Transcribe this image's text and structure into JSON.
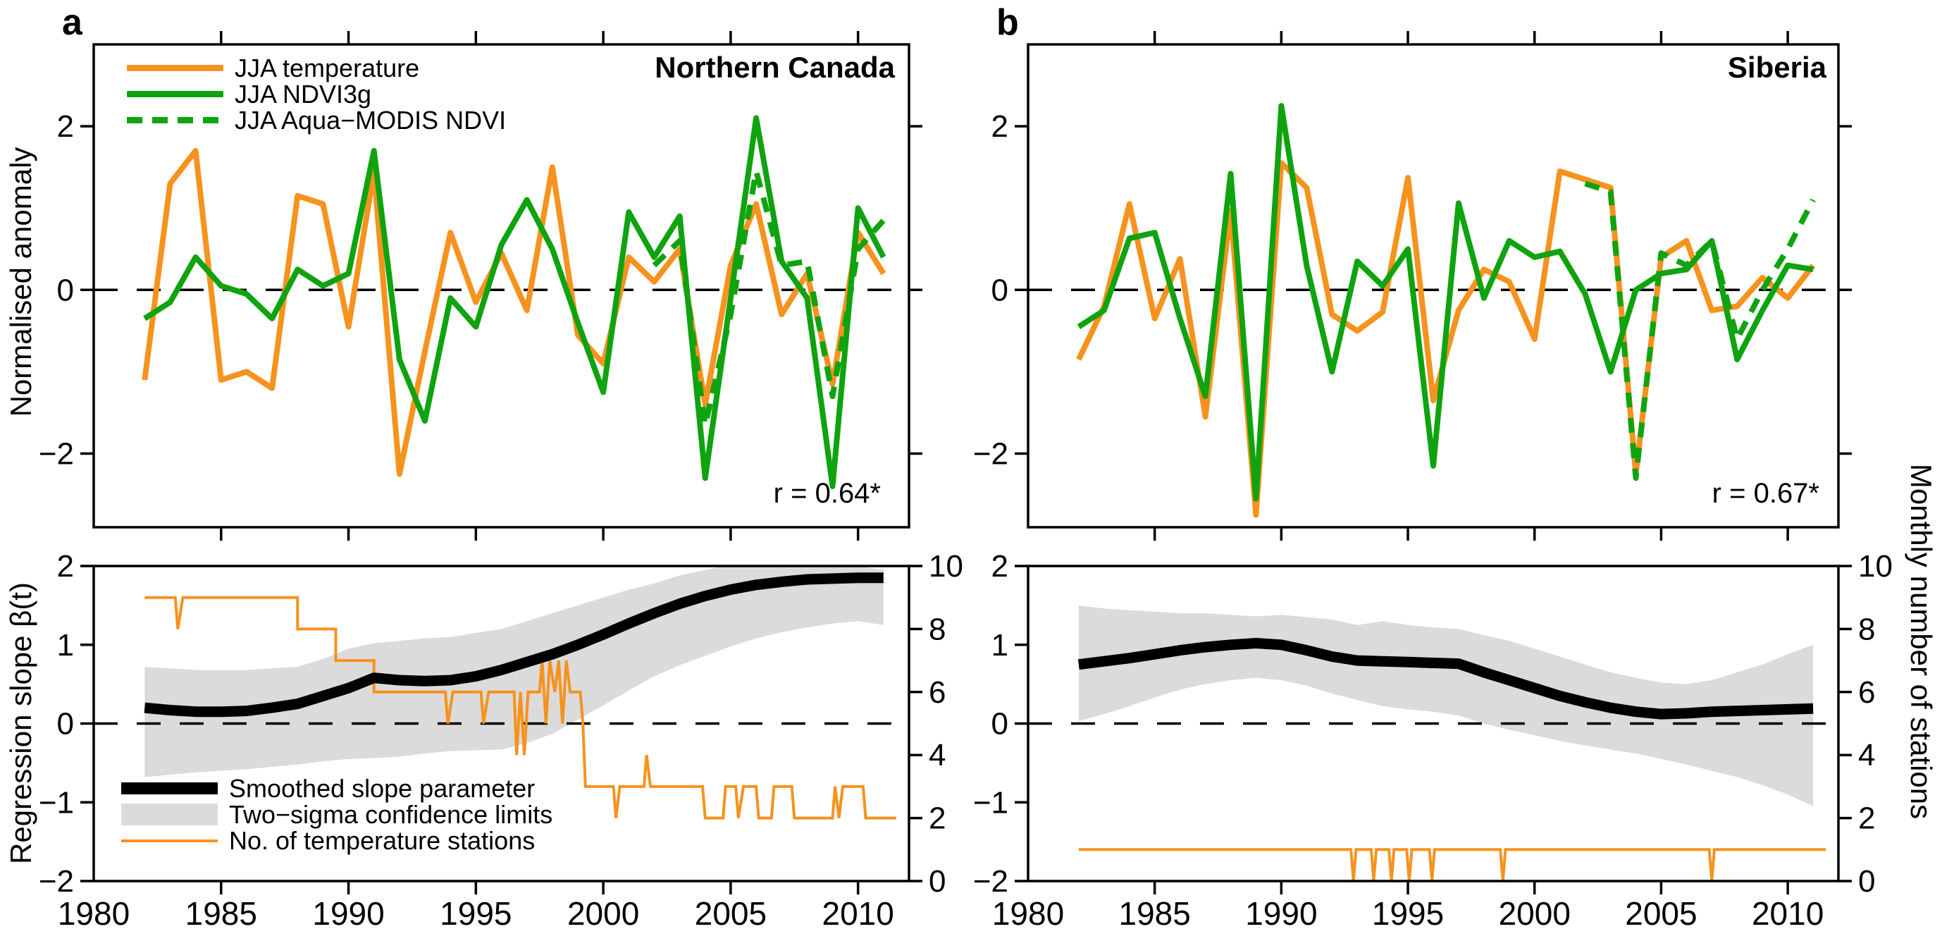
{
  "figure": {
    "panel_a_label": "a",
    "panel_b_label": "b",
    "titles": {
      "a": "Northern Canada",
      "b": "Siberia"
    },
    "r_values": {
      "a": "r = 0.64*",
      "b": "r = 0.67*"
    },
    "axis_labels": {
      "top_y": "Normalised anomaly",
      "bottom_y": "Regression slope β(t)",
      "right_y": "Monthly number of stations"
    },
    "legend_top": [
      {
        "label": "JJA temperature",
        "color_key": "temperature",
        "style": "solid"
      },
      {
        "label": "JJA NDVI3g",
        "color_key": "ndvi",
        "style": "solid"
      },
      {
        "label": "JJA Aqua−MODIS NDVI",
        "color_key": "ndvi",
        "style": "dashed"
      }
    ],
    "legend_bottom": [
      {
        "label": "Smoothed slope parameter",
        "style": "thick-black"
      },
      {
        "label": "Two−sigma confidence limits",
        "style": "band"
      },
      {
        "label": "No. of temperature stations",
        "style": "thin-orange"
      }
    ],
    "colors": {
      "temperature": "#F6921E",
      "ndvi": "#0FA30F",
      "smoothed": "#000000",
      "band": "#DBDBDB",
      "axis": "#000000"
    }
  },
  "chart_data": [
    {
      "id": "a_top",
      "type": "line",
      "title": "Northern Canada",
      "annotation": "r = 0.64*",
      "xlim": [
        1980,
        2012
      ],
      "ylim": [
        -2.9,
        3.0
      ],
      "y_ticks": [
        2,
        0,
        -2
      ],
      "x_ticks": [
        1985,
        1990,
        1995,
        2000,
        2005,
        2010
      ],
      "zero_line": true,
      "years": [
        1982,
        1983,
        1984,
        1985,
        1986,
        1987,
        1988,
        1989,
        1990,
        1991,
        1992,
        1993,
        1994,
        1995,
        1996,
        1997,
        1998,
        1999,
        2000,
        2001,
        2002,
        2003,
        2004,
        2005,
        2006,
        2007,
        2008,
        2009,
        2010,
        2011
      ],
      "series": [
        {
          "name": "JJA temperature",
          "color_key": "temperature",
          "dashed": false,
          "values": [
            -1.1,
            1.3,
            1.7,
            -1.1,
            -1.0,
            -1.2,
            1.15,
            1.05,
            -0.45,
            1.45,
            -2.25,
            -0.75,
            0.7,
            -0.15,
            0.45,
            -0.25,
            1.5,
            -0.55,
            -0.9,
            0.4,
            0.1,
            0.5,
            -1.4,
            0.3,
            1.05,
            -0.3,
            0.2,
            -1.15,
            0.7,
            0.2
          ]
        },
        {
          "name": "JJA NDVI3g",
          "color_key": "ndvi",
          "dashed": false,
          "values": [
            -0.35,
            -0.15,
            0.4,
            0.05,
            -0.05,
            -0.35,
            0.25,
            0.05,
            0.2,
            1.7,
            -0.85,
            -1.6,
            -0.1,
            -0.45,
            0.55,
            1.1,
            0.5,
            -0.4,
            -1.25,
            0.95,
            0.4,
            0.9,
            -2.3,
            -0.1,
            2.1,
            0.35,
            -0.1,
            -2.4,
            1.0,
            0.4
          ]
        },
        {
          "name": "JJA Aqua−MODIS NDVI",
          "color_key": "ndvi",
          "dashed": true,
          "years": [
            2002,
            2003,
            2004,
            2005,
            2006,
            2007,
            2008,
            2009,
            2010,
            2011
          ],
          "values": [
            0.3,
            0.6,
            -1.65,
            -0.3,
            1.45,
            0.3,
            0.35,
            -1.3,
            0.5,
            0.85
          ]
        }
      ]
    },
    {
      "id": "b_top",
      "type": "line",
      "title": "Siberia",
      "annotation": "r = 0.67*",
      "xlim": [
        1980,
        2012
      ],
      "ylim": [
        -2.9,
        3.0
      ],
      "y_ticks": [
        2,
        0,
        -2
      ],
      "x_ticks": [
        1985,
        1990,
        1995,
        2000,
        2005,
        2010
      ],
      "zero_line": true,
      "years": [
        1982,
        1983,
        1984,
        1985,
        1986,
        1987,
        1988,
        1989,
        1990,
        1991,
        1992,
        1993,
        1994,
        1995,
        1996,
        1997,
        1998,
        1999,
        2000,
        2001,
        2002,
        2003,
        2004,
        2005,
        2006,
        2007,
        2008,
        2009,
        2010,
        2011
      ],
      "series": [
        {
          "name": "JJA temperature",
          "color_key": "temperature",
          "dashed": false,
          "values": [
            -0.85,
            -0.2,
            1.05,
            -0.35,
            0.38,
            -1.55,
            0.97,
            -2.75,
            1.55,
            1.25,
            -0.3,
            -0.5,
            -0.27,
            1.37,
            -1.35,
            -0.25,
            0.25,
            0.1,
            -0.6,
            1.45,
            1.35,
            1.25,
            -2.25,
            0.4,
            0.6,
            -0.25,
            -0.2,
            0.15,
            -0.1,
            0.3
          ]
        },
        {
          "name": "JJA NDVI3g",
          "color_key": "ndvi",
          "dashed": false,
          "values": [
            -0.45,
            -0.25,
            0.63,
            0.7,
            -0.35,
            -1.3,
            1.42,
            -2.55,
            2.25,
            0.3,
            -1.0,
            0.35,
            0.05,
            0.5,
            -2.15,
            1.06,
            -0.1,
            0.6,
            0.4,
            0.47,
            -0.05,
            -1.0,
            0.0,
            0.2,
            0.25,
            0.6,
            -0.85,
            -0.25,
            0.3,
            0.25
          ]
        },
        {
          "name": "JJA Aqua−MODIS NDVI",
          "color_key": "ndvi",
          "dashed": true,
          "years": [
            2002,
            2003,
            2004,
            2005,
            2006,
            2007,
            2008,
            2009,
            2010,
            2011
          ],
          "values": [
            1.3,
            1.2,
            -2.3,
            0.45,
            0.3,
            0.6,
            -0.6,
            0.0,
            0.5,
            1.1
          ]
        }
      ]
    },
    {
      "id": "a_bottom",
      "type": "line",
      "xlim": [
        1980,
        2012
      ],
      "ylim": [
        -2,
        2
      ],
      "y_ticks": [
        2,
        1,
        0,
        -1,
        -2
      ],
      "right_ylim": [
        0,
        10
      ],
      "right_ticks": [
        10,
        8,
        6,
        4,
        2,
        0
      ],
      "x_ticks": [
        1985,
        1990,
        1995,
        2000,
        2005,
        2010
      ],
      "x_tick_labels": [
        1980,
        1985,
        1990,
        1995,
        2000,
        2005,
        2010
      ],
      "zero_line": true,
      "years": [
        1982,
        1983,
        1984,
        1985,
        1986,
        1987,
        1988,
        1989,
        1990,
        1991,
        1992,
        1993,
        1994,
        1995,
        1996,
        1997,
        1998,
        1999,
        2000,
        2001,
        2002,
        2003,
        2004,
        2005,
        2006,
        2007,
        2008,
        2009,
        2010,
        2011
      ],
      "smoothed": [
        0.2,
        0.17,
        0.15,
        0.15,
        0.16,
        0.2,
        0.25,
        0.35,
        0.45,
        0.58,
        0.55,
        0.54,
        0.55,
        0.6,
        0.68,
        0.78,
        0.88,
        1.0,
        1.13,
        1.27,
        1.4,
        1.52,
        1.62,
        1.7,
        1.76,
        1.8,
        1.83,
        1.84,
        1.85,
        1.85
      ],
      "band_upper": [
        0.72,
        0.7,
        0.68,
        0.68,
        0.68,
        0.7,
        0.72,
        0.82,
        0.95,
        1.02,
        1.05,
        1.08,
        1.1,
        1.15,
        1.2,
        1.3,
        1.4,
        1.5,
        1.6,
        1.7,
        1.78,
        1.88,
        1.95,
        2.02,
        2.05,
        2.08,
        2.1,
        2.05,
        2.0,
        1.95
      ],
      "band_lower": [
        -0.68,
        -0.65,
        -0.62,
        -0.6,
        -0.58,
        -0.55,
        -0.52,
        -0.48,
        -0.45,
        -0.44,
        -0.42,
        -0.38,
        -0.35,
        -0.34,
        -0.33,
        -0.25,
        -0.13,
        0.05,
        0.23,
        0.42,
        0.6,
        0.74,
        0.86,
        0.98,
        1.08,
        1.16,
        1.22,
        1.27,
        1.3,
        1.25
      ],
      "stations": [
        [
          1982,
          9
        ],
        [
          1983.2,
          9
        ],
        [
          1983.3,
          8
        ],
        [
          1983.5,
          9
        ],
        [
          1988,
          9
        ],
        [
          1988,
          8
        ],
        [
          1989.5,
          8
        ],
        [
          1989.5,
          7
        ],
        [
          1991,
          7
        ],
        [
          1991,
          6
        ],
        [
          1993.8,
          6
        ],
        [
          1993.9,
          5
        ],
        [
          1994.1,
          6
        ],
        [
          1995.2,
          6
        ],
        [
          1995.3,
          5
        ],
        [
          1995.5,
          6
        ],
        [
          1996.5,
          6
        ],
        [
          1996.6,
          4
        ],
        [
          1996.75,
          6
        ],
        [
          1996.9,
          4
        ],
        [
          1997.05,
          6
        ],
        [
          1997.5,
          6
        ],
        [
          1997.6,
          7
        ],
        [
          1997.75,
          5
        ],
        [
          1997.9,
          7
        ],
        [
          1998.1,
          6
        ],
        [
          1998.25,
          7
        ],
        [
          1998.4,
          5
        ],
        [
          1998.55,
          7
        ],
        [
          1998.7,
          6
        ],
        [
          1999.1,
          6
        ],
        [
          1999.2,
          5
        ],
        [
          1999.3,
          3
        ],
        [
          2000.4,
          3
        ],
        [
          2000.5,
          2
        ],
        [
          2000.65,
          3
        ],
        [
          2001.6,
          3
        ],
        [
          2001.7,
          4
        ],
        [
          2001.85,
          3
        ],
        [
          2003.9,
          3
        ],
        [
          2004.0,
          2
        ],
        [
          2004.7,
          2
        ],
        [
          2004.8,
          3
        ],
        [
          2005.2,
          3
        ],
        [
          2005.3,
          2
        ],
        [
          2005.5,
          3
        ],
        [
          2006.0,
          3
        ],
        [
          2006.1,
          2
        ],
        [
          2006.6,
          2
        ],
        [
          2006.7,
          3
        ],
        [
          2007.4,
          3
        ],
        [
          2007.5,
          2
        ],
        [
          2009.0,
          2
        ],
        [
          2009.1,
          3
        ],
        [
          2009.25,
          2
        ],
        [
          2009.4,
          3
        ],
        [
          2010.2,
          3
        ],
        [
          2010.3,
          2
        ],
        [
          2011.5,
          2
        ]
      ]
    },
    {
      "id": "b_bottom",
      "type": "line",
      "xlim": [
        1980,
        2012
      ],
      "ylim": [
        -2,
        2
      ],
      "y_ticks": [
        2,
        1,
        0,
        -1,
        -2
      ],
      "right_ylim": [
        0,
        10
      ],
      "right_ticks": [
        10,
        8,
        6,
        4,
        2,
        0
      ],
      "x_ticks": [
        1985,
        1990,
        1995,
        2000,
        2005,
        2010
      ],
      "x_tick_labels": [
        1980,
        1985,
        1990,
        1995,
        2000,
        2005,
        2010
      ],
      "zero_line": true,
      "years": [
        1982,
        1983,
        1984,
        1985,
        1986,
        1987,
        1988,
        1989,
        1990,
        1991,
        1992,
        1993,
        1994,
        1995,
        1996,
        1997,
        1998,
        1999,
        2000,
        2001,
        2002,
        2003,
        2004,
        2005,
        2006,
        2007,
        2008,
        2009,
        2010,
        2011
      ],
      "smoothed": [
        0.75,
        0.79,
        0.83,
        0.88,
        0.93,
        0.97,
        1.0,
        1.02,
        1.0,
        0.93,
        0.85,
        0.8,
        0.79,
        0.78,
        0.77,
        0.76,
        0.65,
        0.55,
        0.45,
        0.35,
        0.27,
        0.2,
        0.15,
        0.12,
        0.13,
        0.15,
        0.16,
        0.17,
        0.18,
        0.19
      ],
      "band_upper": [
        1.5,
        1.46,
        1.44,
        1.42,
        1.4,
        1.4,
        1.38,
        1.36,
        1.38,
        1.35,
        1.32,
        1.25,
        1.3,
        1.25,
        1.22,
        1.2,
        1.12,
        1.05,
        0.95,
        0.85,
        0.75,
        0.65,
        0.58,
        0.52,
        0.5,
        0.55,
        0.65,
        0.75,
        0.88,
        1.0
      ],
      "band_lower": [
        0.03,
        0.12,
        0.22,
        0.33,
        0.43,
        0.5,
        0.55,
        0.58,
        0.55,
        0.48,
        0.38,
        0.3,
        0.22,
        0.18,
        0.15,
        0.1,
        0.0,
        -0.08,
        -0.15,
        -0.22,
        -0.28,
        -0.33,
        -0.38,
        -0.45,
        -0.52,
        -0.6,
        -0.68,
        -0.78,
        -0.9,
        -1.05
      ],
      "stations": [
        [
          1982,
          1
        ],
        [
          1992.75,
          1
        ],
        [
          1992.85,
          0
        ],
        [
          1992.95,
          1
        ],
        [
          1993.55,
          1
        ],
        [
          1993.65,
          0
        ],
        [
          1993.75,
          1
        ],
        [
          1994.25,
          1
        ],
        [
          1994.35,
          0
        ],
        [
          1994.45,
          1
        ],
        [
          1994.95,
          1
        ],
        [
          1995.05,
          0
        ],
        [
          1995.15,
          1
        ],
        [
          1995.85,
          1
        ],
        [
          1995.95,
          0
        ],
        [
          1996.05,
          1
        ],
        [
          1998.65,
          1
        ],
        [
          1998.75,
          0
        ],
        [
          1998.85,
          1
        ],
        [
          2006.9,
          1
        ],
        [
          2007.0,
          0
        ],
        [
          2007.1,
          1
        ],
        [
          2011.5,
          1
        ]
      ]
    }
  ]
}
